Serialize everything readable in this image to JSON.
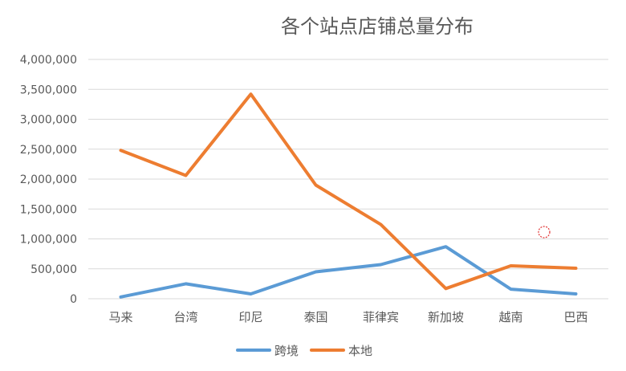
{
  "chart_data": {
    "type": "line",
    "title": "各个站点店铺总量分布",
    "xlabel": "",
    "ylabel": "",
    "categories": [
      "马来",
      "台湾",
      "印尼",
      "泰国",
      "菲律宾",
      "新加坡",
      "越南",
      "巴西"
    ],
    "ylim": [
      0,
      4000000
    ],
    "yticks": [
      0,
      500000,
      1000000,
      1500000,
      2000000,
      2500000,
      3000000,
      3500000,
      4000000
    ],
    "ytick_labels": [
      "0",
      "500,000",
      "1,000,000",
      "1,500,000",
      "2,000,000",
      "2,500,000",
      "3,000,000",
      "3,500,000",
      "4,000,000"
    ],
    "grid": true,
    "legend_position": "bottom",
    "series": [
      {
        "name": "跨境",
        "color": "#5B9BD5",
        "values": [
          30000,
          250000,
          80000,
          450000,
          570000,
          870000,
          160000,
          80000
        ]
      },
      {
        "name": "本地",
        "color": "#ED7D31",
        "values": [
          2480000,
          2060000,
          3420000,
          1900000,
          1240000,
          170000,
          550000,
          510000
        ]
      }
    ]
  }
}
